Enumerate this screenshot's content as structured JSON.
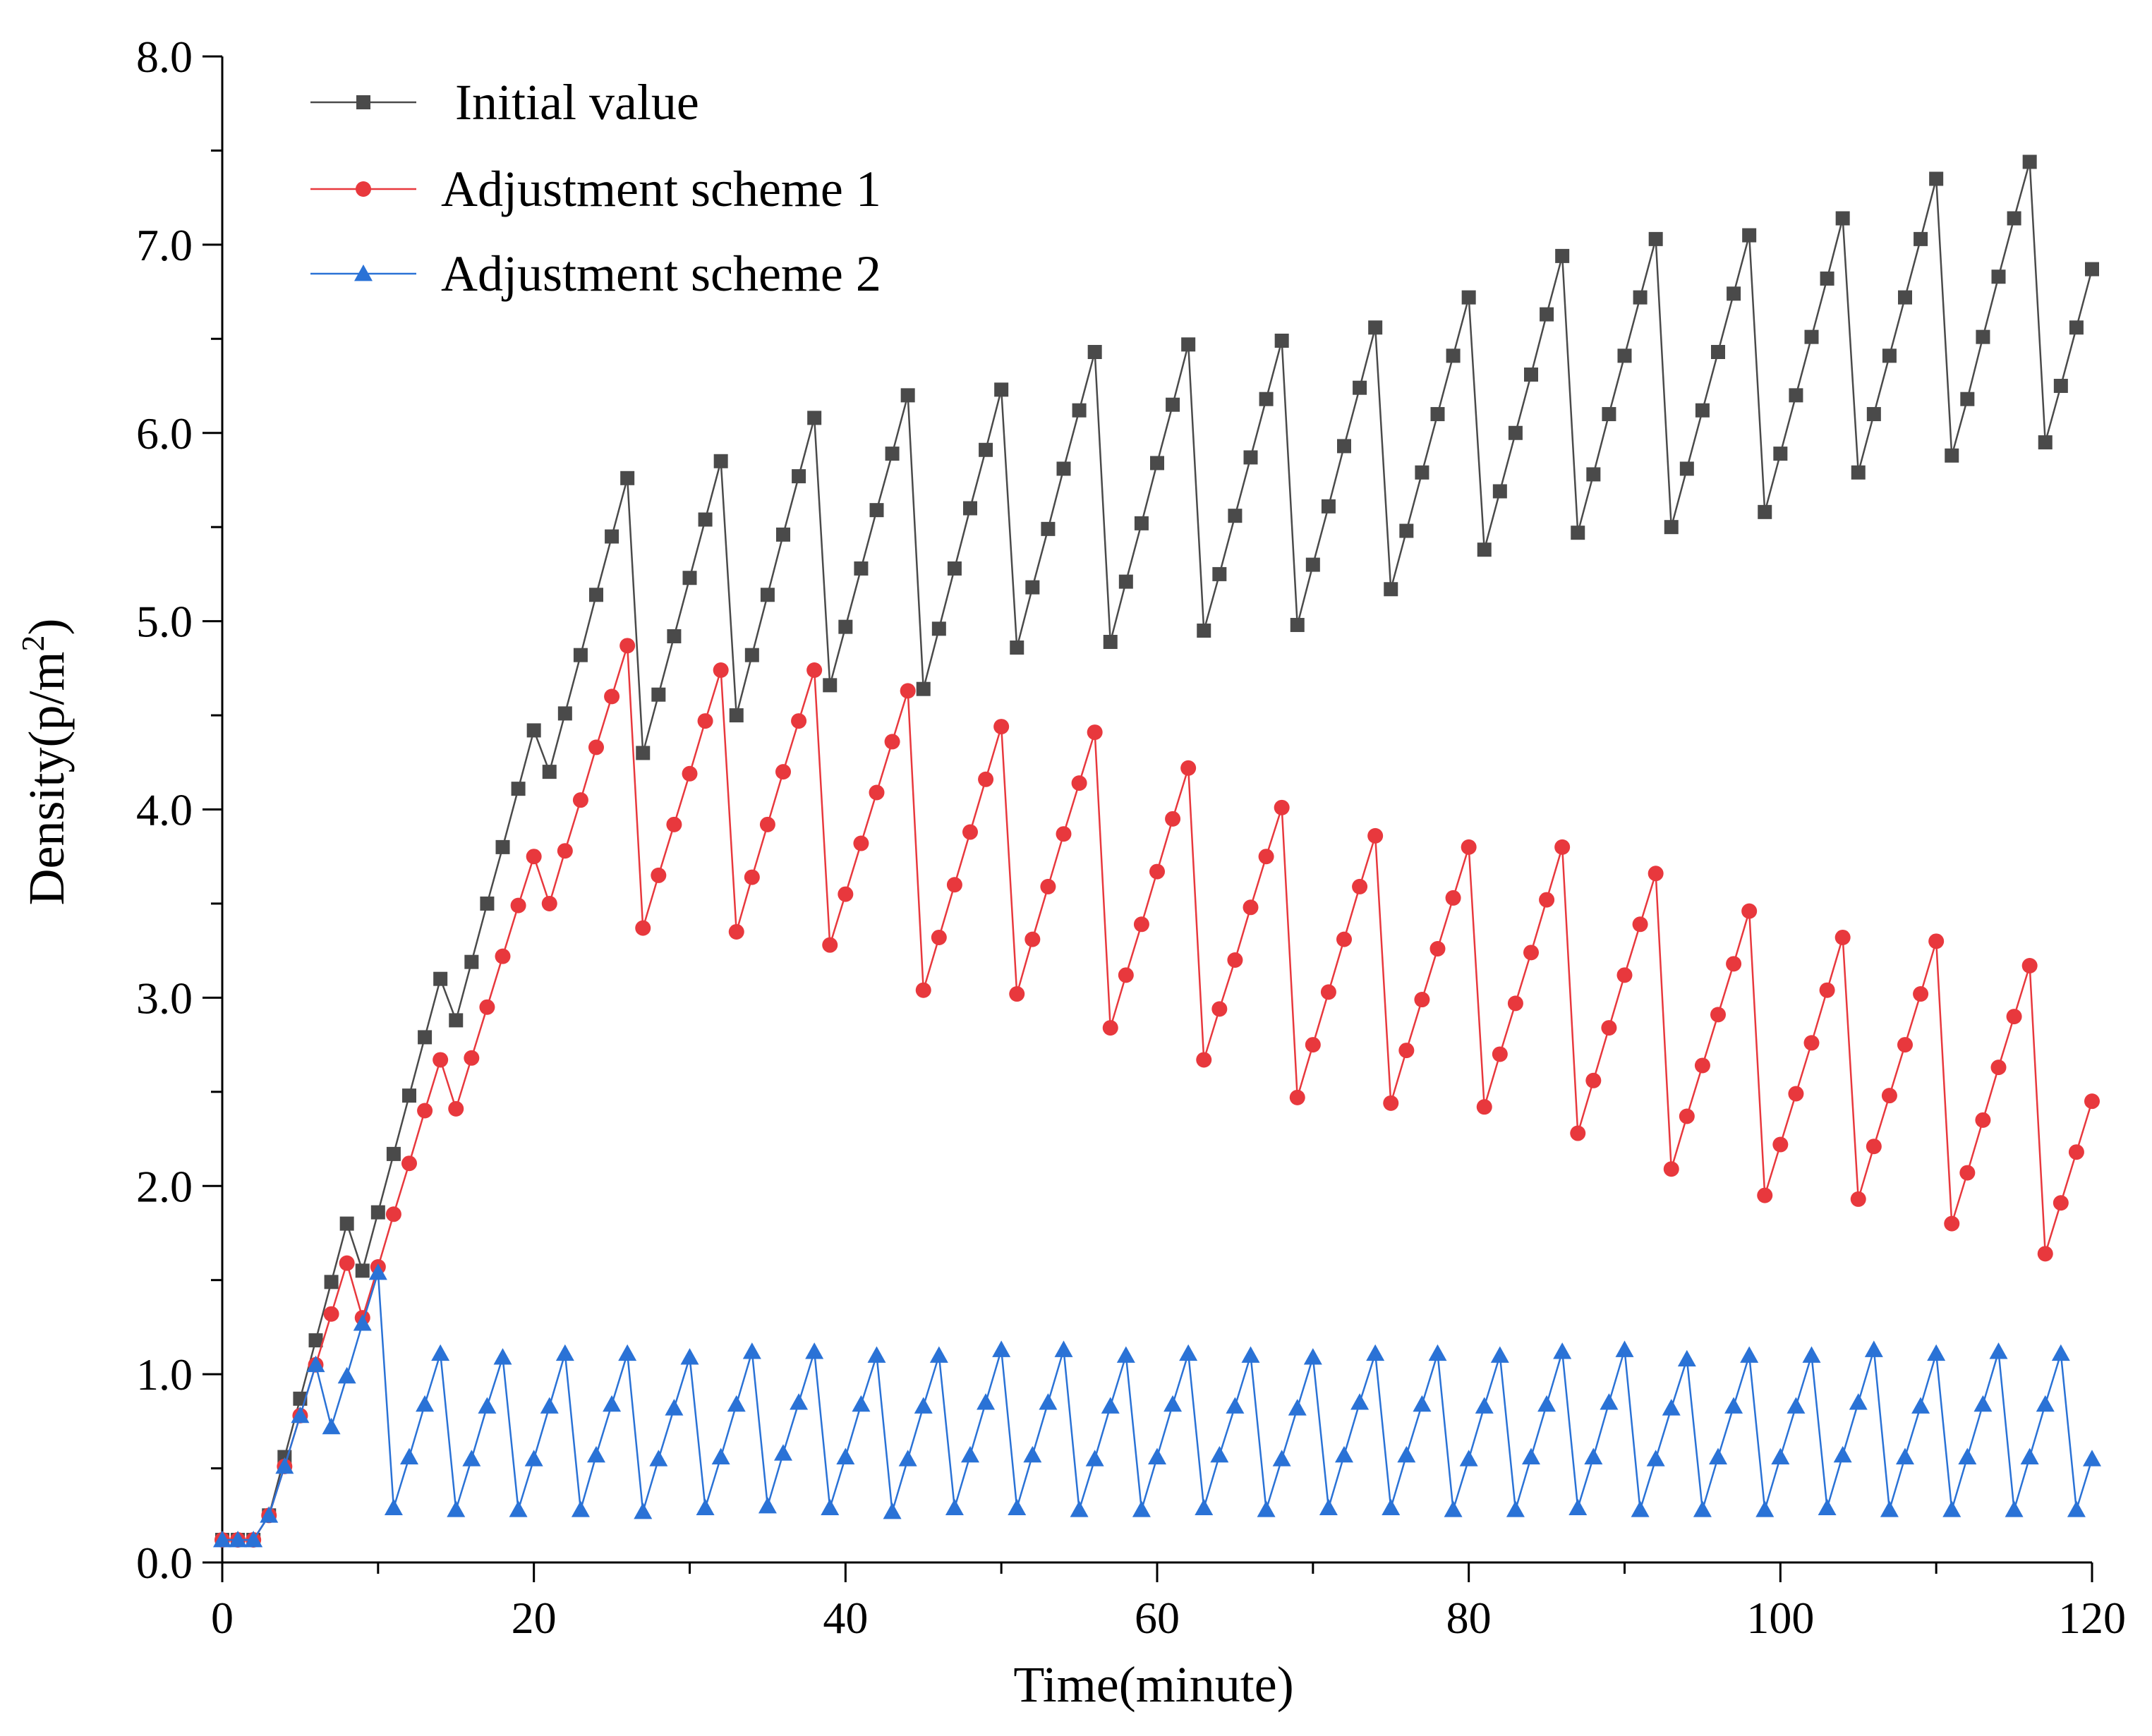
{
  "chart_data": {
    "type": "line",
    "title": "",
    "xlabel": "Time(minute)",
    "ylabel_main": "Density(p/m",
    "ylabel_sup": "2",
    "ylabel_close": ")",
    "xlim": [
      0,
      120
    ],
    "ylim": [
      0,
      8
    ],
    "xticks": [
      0,
      20,
      40,
      60,
      80,
      100,
      120
    ],
    "xtick_labels": [
      "0",
      "20",
      "40",
      "60",
      "80",
      "100",
      "120"
    ],
    "yticks": [
      0,
      1,
      2,
      3,
      4,
      5,
      6,
      7,
      8
    ],
    "ytick_labels": [
      "0.0",
      "1.0",
      "2.0",
      "3.0",
      "4.0",
      "5.0",
      "6.0",
      "7.0",
      "8.0"
    ],
    "grid": false,
    "legend_position": "top-left",
    "series": [
      {
        "name": "Initial value",
        "color": "#4a4a4a",
        "marker": "square",
        "x": [
          0,
          1,
          2,
          3,
          4,
          5,
          6,
          7,
          8,
          9,
          10,
          11,
          12,
          13,
          14,
          15,
          16,
          17,
          18,
          19,
          20,
          21,
          22,
          23,
          24,
          25,
          26,
          27,
          28,
          29,
          30,
          31,
          32,
          33,
          34,
          35,
          36,
          37,
          38,
          39,
          40,
          41,
          42,
          43,
          44,
          45,
          46,
          47,
          48,
          49,
          50,
          51,
          52,
          53,
          54,
          55,
          56,
          57,
          58,
          59,
          60,
          61,
          62,
          63,
          64,
          65,
          66,
          67,
          68,
          69,
          70,
          71,
          72,
          73,
          74,
          75,
          76,
          77,
          78,
          79,
          80,
          81,
          82,
          83,
          84,
          85,
          86,
          87,
          88,
          89,
          90,
          91,
          92,
          93,
          94,
          95,
          96,
          97,
          98,
          99,
          100,
          101,
          102,
          103,
          104,
          105,
          106,
          107,
          108,
          109,
          110,
          111,
          112,
          113,
          114,
          115,
          116,
          117,
          118,
          119,
          120
        ],
        "values": [
          0.12,
          0.12,
          0.12,
          0.25,
          0.56,
          0.87,
          1.18,
          1.49,
          1.8,
          1.55,
          1.86,
          2.17,
          2.48,
          2.79,
          3.1,
          2.88,
          3.19,
          3.5,
          3.8,
          4.11,
          4.42,
          4.2,
          4.51,
          4.82,
          5.14,
          5.45,
          5.76,
          4.3,
          4.61,
          4.92,
          5.23,
          5.54,
          5.85,
          4.5,
          4.82,
          5.14,
          5.46,
          5.77,
          6.08,
          4.66,
          4.97,
          5.28,
          5.59,
          5.89,
          6.2,
          4.64,
          4.96,
          5.28,
          5.6,
          5.91,
          6.23,
          4.86,
          5.18,
          5.49,
          5.81,
          6.12,
          6.43,
          4.89,
          5.21,
          5.52,
          5.84,
          6.15,
          6.47,
          4.95,
          5.25,
          5.56,
          5.87,
          6.18,
          6.49,
          4.98,
          5.3,
          5.61,
          5.93,
          6.24,
          6.56,
          5.17,
          5.48,
          5.79,
          6.1,
          6.41,
          6.72,
          5.38,
          5.69,
          6.0,
          6.31,
          6.63,
          6.94,
          5.47,
          5.78,
          6.1,
          6.41,
          6.72,
          7.03,
          5.5,
          5.81,
          6.12,
          6.43,
          6.74,
          7.05,
          5.58,
          5.89,
          6.2,
          6.51,
          6.82,
          7.14,
          5.79,
          6.1,
          6.41,
          6.72,
          7.03,
          7.35,
          5.88,
          6.18,
          6.51,
          6.83,
          7.14,
          7.44,
          5.95,
          6.25,
          6.56,
          6.87
        ]
      },
      {
        "name": "Adjustment scheme 1",
        "color": "#e8383d",
        "marker": "circle",
        "x": [
          0,
          1,
          2,
          3,
          4,
          5,
          6,
          7,
          8,
          9,
          10,
          11,
          12,
          13,
          14,
          15,
          16,
          17,
          18,
          19,
          20,
          21,
          22,
          23,
          24,
          25,
          26,
          27,
          28,
          29,
          30,
          31,
          32,
          33,
          34,
          35,
          36,
          37,
          38,
          39,
          40,
          41,
          42,
          43,
          44,
          45,
          46,
          47,
          48,
          49,
          50,
          51,
          52,
          53,
          54,
          55,
          56,
          57,
          58,
          59,
          60,
          61,
          62,
          63,
          64,
          65,
          66,
          67,
          68,
          69,
          70,
          71,
          72,
          73,
          74,
          75,
          76,
          77,
          78,
          79,
          80,
          81,
          82,
          83,
          84,
          85,
          86,
          87,
          88,
          89,
          90,
          91,
          92,
          93,
          94,
          95,
          96,
          97,
          98,
          99,
          100,
          101,
          102,
          103,
          104,
          105,
          106,
          107,
          108,
          109,
          110,
          111,
          112,
          113,
          114,
          115,
          116,
          117,
          118,
          119,
          120
        ],
        "values": [
          0.12,
          0.12,
          0.12,
          0.25,
          0.51,
          0.78,
          1.05,
          1.32,
          1.59,
          1.3,
          1.57,
          1.85,
          2.12,
          2.4,
          2.67,
          2.41,
          2.68,
          2.95,
          3.22,
          3.49,
          3.75,
          3.5,
          3.78,
          4.05,
          4.33,
          4.6,
          4.87,
          3.37,
          3.65,
          3.92,
          4.19,
          4.47,
          4.74,
          3.35,
          3.64,
          3.92,
          4.2,
          4.47,
          4.74,
          3.28,
          3.55,
          3.82,
          4.09,
          4.36,
          4.63,
          3.04,
          3.32,
          3.6,
          3.88,
          4.16,
          4.44,
          3.02,
          3.31,
          3.59,
          3.87,
          4.14,
          4.41,
          2.84,
          3.12,
          3.39,
          3.67,
          3.95,
          4.22,
          2.67,
          2.94,
          3.2,
          3.48,
          3.75,
          4.01,
          2.47,
          2.75,
          3.03,
          3.31,
          3.59,
          3.86,
          2.44,
          2.72,
          2.99,
          3.26,
          3.53,
          3.8,
          2.42,
          2.7,
          2.97,
          3.24,
          3.52,
          3.8,
          2.28,
          2.56,
          2.84,
          3.12,
          3.39,
          3.66,
          2.09,
          2.37,
          2.64,
          2.91,
          3.18,
          3.46,
          1.95,
          2.22,
          2.49,
          2.76,
          3.04,
          3.32,
          1.93,
          2.21,
          2.48,
          2.75,
          3.02,
          3.3,
          1.8,
          2.07,
          2.35,
          2.63,
          2.9,
          3.17,
          1.64,
          1.91,
          2.18,
          2.45
        ]
      },
      {
        "name": "Adjustment scheme 2",
        "color": "#2a72d6",
        "marker": "triangle",
        "x": [
          0,
          1,
          2,
          3,
          4,
          5,
          6,
          7,
          8,
          9,
          10,
          11,
          12,
          13,
          14,
          15,
          16,
          17,
          18,
          19,
          20,
          21,
          22,
          23,
          24,
          25,
          26,
          27,
          28,
          29,
          30,
          31,
          32,
          33,
          34,
          35,
          36,
          37,
          38,
          39,
          40,
          41,
          42,
          43,
          44,
          45,
          46,
          47,
          48,
          49,
          50,
          51,
          52,
          53,
          54,
          55,
          56,
          57,
          58,
          59,
          60,
          61,
          62,
          63,
          64,
          65,
          66,
          67,
          68,
          69,
          70,
          71,
          72,
          73,
          74,
          75,
          76,
          77,
          78,
          79,
          80,
          81,
          82,
          83,
          84,
          85,
          86,
          87,
          88,
          89,
          90,
          91,
          92,
          93,
          94,
          95,
          96,
          97,
          98,
          99,
          100,
          101,
          102,
          103,
          104,
          105,
          106,
          107,
          108,
          109,
          110,
          111,
          112,
          113,
          114,
          115,
          116,
          117,
          118,
          119,
          120
        ],
        "values": [
          0.12,
          0.12,
          0.12,
          0.25,
          0.51,
          0.78,
          1.05,
          0.72,
          0.99,
          1.27,
          1.54,
          0.29,
          0.56,
          0.84,
          1.11,
          0.28,
          0.55,
          0.83,
          1.09,
          0.28,
          0.55,
          0.83,
          1.11,
          0.28,
          0.57,
          0.84,
          1.11,
          0.27,
          0.55,
          0.82,
          1.09,
          0.29,
          0.56,
          0.84,
          1.12,
          0.3,
          0.58,
          0.85,
          1.12,
          0.29,
          0.56,
          0.84,
          1.1,
          0.27,
          0.55,
          0.83,
          1.1,
          0.29,
          0.57,
          0.85,
          1.13,
          0.29,
          0.57,
          0.85,
          1.13,
          0.28,
          0.55,
          0.83,
          1.1,
          0.28,
          0.56,
          0.84,
          1.11,
          0.29,
          0.57,
          0.83,
          1.1,
          0.28,
          0.55,
          0.82,
          1.09,
          0.29,
          0.57,
          0.85,
          1.11,
          0.29,
          0.57,
          0.84,
          1.11,
          0.28,
          0.55,
          0.83,
          1.1,
          0.28,
          0.56,
          0.84,
          1.12,
          0.29,
          0.56,
          0.85,
          1.13,
          0.28,
          0.55,
          0.82,
          1.08,
          0.28,
          0.56,
          0.83,
          1.1,
          0.28,
          0.56,
          0.83,
          1.1,
          0.29,
          0.57,
          0.85,
          1.13,
          0.28,
          0.56,
          0.83,
          1.11,
          0.28,
          0.56,
          0.84,
          1.12,
          0.28,
          0.56,
          0.84,
          1.11,
          0.28,
          0.55
        ]
      }
    ]
  }
}
